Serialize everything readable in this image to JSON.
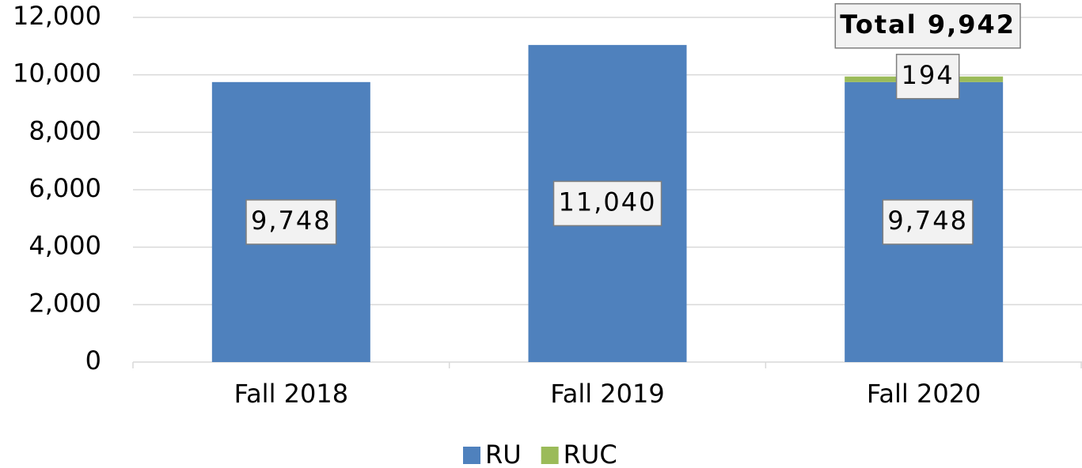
{
  "chart_data": {
    "type": "stacked_bar",
    "categories": [
      "Fall 2018",
      "Fall 2019",
      "Fall 2020"
    ],
    "series": [
      {
        "name": "RU",
        "color": "#4f81bd",
        "values": [
          9748,
          11040,
          9748
        ],
        "value_labels": [
          "9,748",
          "11,040",
          "9,748"
        ]
      },
      {
        "name": "RUC",
        "color": "#9bbb59",
        "values": [
          null,
          null,
          194
        ]
      }
    ],
    "total_label": "Total 9,942",
    "ylim": [
      0,
      12000
    ],
    "yticks": [
      0,
      {
        "value": 2000,
        "label": "2,000"
      },
      {
        "value": 4000,
        "label": "4,000"
      },
      {
        "value": 6000,
        "label": "6,000"
      },
      {
        "value": 8000,
        "label": "8,000"
      },
      {
        "value": 10000,
        "label": "10,000"
      },
      {
        "value": 12000,
        "label": "12,000"
      }
    ],
    "grid": true,
    "legend": "bottom"
  }
}
